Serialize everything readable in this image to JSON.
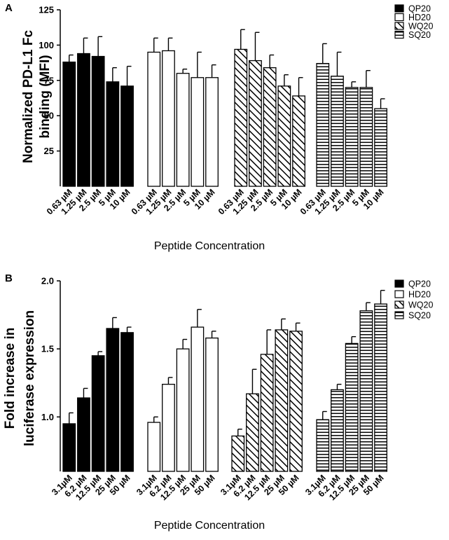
{
  "chart_data": [
    {
      "panel": "A",
      "type": "bar",
      "xlabel": "Peptide Concentration",
      "ylabel": [
        "Normalized PD-L1 Fc",
        "binding (MFI)"
      ],
      "ylim": [
        0,
        125
      ],
      "yticks": [
        25,
        50,
        75,
        100,
        125
      ],
      "categories": [
        "0.63 µM",
        "1.25 µM",
        "2.5 µM",
        "5 µM",
        "10 µM"
      ],
      "series": [
        {
          "name": "QP20",
          "pattern": "solid",
          "values": [
            88,
            94,
            92,
            74,
            71
          ],
          "errors": [
            5,
            11,
            14,
            10,
            14
          ]
        },
        {
          "name": "HD20",
          "pattern": "open",
          "values": [
            95,
            96,
            80,
            77,
            77
          ],
          "errors": [
            10,
            9,
            3,
            18,
            9
          ]
        },
        {
          "name": "WQ20",
          "pattern": "diagonal",
          "values": [
            97,
            89,
            84,
            71,
            64
          ],
          "errors": [
            14,
            20,
            9,
            8,
            13
          ]
        },
        {
          "name": "SQ20",
          "pattern": "horizontal",
          "values": [
            87,
            78,
            70,
            70,
            55
          ],
          "errors": [
            14,
            17,
            4,
            12,
            7
          ]
        }
      ]
    },
    {
      "panel": "B",
      "type": "bar",
      "xlabel": "Peptide Concentration",
      "ylabel": [
        "Fold increase in",
        "luciferase expression"
      ],
      "ylim": [
        0.6,
        2.0
      ],
      "yticks": [
        1.0,
        1.5,
        2.0
      ],
      "yticklabels": [
        "1.0",
        "1.5",
        "2.0"
      ],
      "categories": [
        "3.1µM",
        "6.2 µM",
        "12.5 µM",
        "25 µM",
        "50 µM"
      ],
      "series": [
        {
          "name": "QP20",
          "pattern": "solid",
          "values": [
            0.95,
            1.14,
            1.45,
            1.65,
            1.62
          ],
          "errors": [
            0.08,
            0.07,
            0.03,
            0.08,
            0.04
          ]
        },
        {
          "name": "HD20",
          "pattern": "open",
          "values": [
            0.96,
            1.24,
            1.5,
            1.66,
            1.58
          ],
          "errors": [
            0.04,
            0.05,
            0.07,
            0.13,
            0.05
          ]
        },
        {
          "name": "WQ20",
          "pattern": "diagonal",
          "values": [
            0.86,
            1.17,
            1.46,
            1.64,
            1.63
          ],
          "errors": [
            0.05,
            0.18,
            0.18,
            0.08,
            0.06
          ]
        },
        {
          "name": "SQ20",
          "pattern": "horizontal",
          "values": [
            0.98,
            1.2,
            1.54,
            1.78,
            1.83
          ],
          "errors": [
            0.06,
            0.04,
            0.05,
            0.06,
            0.1
          ]
        }
      ]
    }
  ]
}
